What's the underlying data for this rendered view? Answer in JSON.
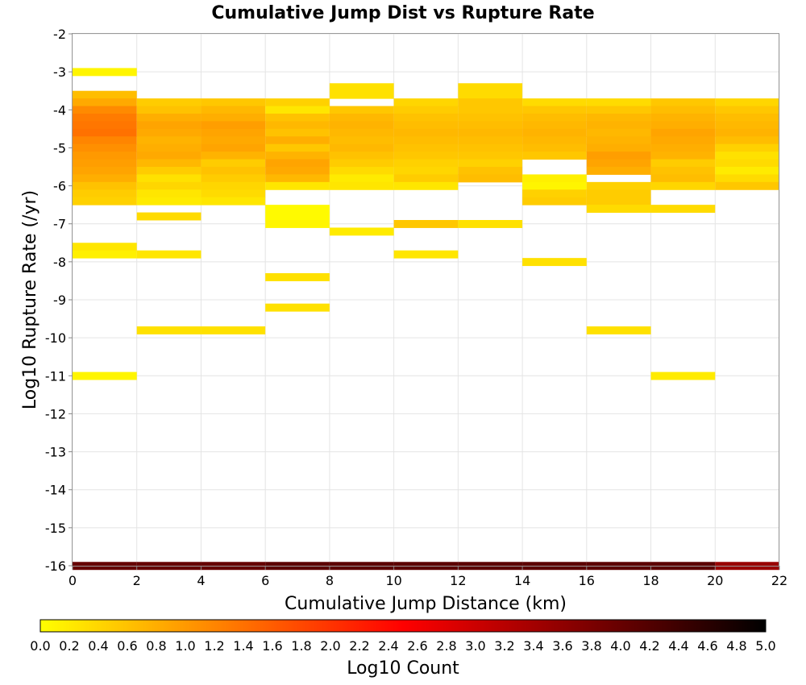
{
  "chart_data": {
    "type": "heatmap",
    "title": "Cumulative Jump Dist vs Rupture Rate",
    "xlabel": "Cumulative Jump Distance (km)",
    "ylabel": "Log10 Rupture Rate (/yr)",
    "xlim": [
      0,
      22
    ],
    "ylim": [
      -16,
      -2
    ],
    "x_bin_width": 2,
    "y_bin_height": 0.2,
    "x_ticks": [
      "0",
      "2",
      "4",
      "6",
      "8",
      "10",
      "12",
      "14",
      "16",
      "18",
      "20",
      "22"
    ],
    "y_ticks": [
      "-2",
      "-3",
      "-4",
      "-5",
      "-6",
      "-7",
      "-8",
      "-9",
      "-10",
      "-11",
      "-12",
      "-13",
      "-14",
      "-15",
      "-16"
    ],
    "grid": true,
    "colorbar": {
      "label": "Log10 Count",
      "range": [
        0,
        5
      ],
      "colormap": [
        "#ffff00",
        "#ff8000",
        "#ff0000",
        "#800000",
        "#000000"
      ],
      "ticks": [
        "0.0",
        "0.2",
        "0.4",
        "0.6",
        "0.8",
        "1.0",
        "1.2",
        "1.4",
        "1.6",
        "1.8",
        "2.0",
        "2.2",
        "2.4",
        "2.6",
        "2.8",
        "3.0",
        "3.2",
        "3.4",
        "3.6",
        "3.8",
        "4.0",
        "4.2",
        "4.4",
        "4.6",
        "4.8",
        "5.0"
      ]
    },
    "columns": [
      {
        "x": [
          0,
          2
        ],
        "cells": [
          [
            -3.0,
            0.1
          ],
          [
            -3.6,
            0.65
          ],
          [
            -3.8,
            0.85
          ],
          [
            -4.0,
            1.15
          ],
          [
            -4.2,
            1.3
          ],
          [
            -4.4,
            1.35
          ],
          [
            -4.6,
            1.4
          ],
          [
            -4.8,
            1.2
          ],
          [
            -5.0,
            1.1
          ],
          [
            -5.2,
            1.0
          ],
          [
            -5.4,
            0.95
          ],
          [
            -5.6,
            0.9
          ],
          [
            -5.8,
            0.8
          ],
          [
            -6.0,
            0.6
          ],
          [
            -6.2,
            0.5
          ],
          [
            -6.4,
            0.45
          ],
          [
            -7.6,
            0.25
          ],
          [
            -7.8,
            0.15
          ],
          [
            -11.0,
            0.1
          ],
          [
            -16.0,
            4.0
          ]
        ]
      },
      {
        "x": [
          2,
          4
        ],
        "cells": [
          [
            -3.8,
            0.5
          ],
          [
            -4.0,
            0.6
          ],
          [
            -4.2,
            0.8
          ],
          [
            -4.4,
            0.9
          ],
          [
            -4.6,
            0.85
          ],
          [
            -4.8,
            0.75
          ],
          [
            -5.0,
            0.8
          ],
          [
            -5.2,
            0.85
          ],
          [
            -5.4,
            0.7
          ],
          [
            -5.6,
            0.5
          ],
          [
            -5.8,
            0.3
          ],
          [
            -6.0,
            0.4
          ],
          [
            -6.2,
            0.25
          ],
          [
            -6.4,
            0.2
          ],
          [
            -6.8,
            0.35
          ],
          [
            -7.8,
            0.25
          ],
          [
            -9.8,
            0.3
          ],
          [
            -16.0,
            4.0
          ]
        ]
      },
      {
        "x": [
          4,
          6
        ],
        "cells": [
          [
            -3.8,
            0.55
          ],
          [
            -4.0,
            0.7
          ],
          [
            -4.2,
            0.8
          ],
          [
            -4.4,
            0.95
          ],
          [
            -4.6,
            0.9
          ],
          [
            -4.8,
            0.85
          ],
          [
            -5.0,
            0.9
          ],
          [
            -5.2,
            0.75
          ],
          [
            -5.4,
            0.5
          ],
          [
            -5.6,
            0.6
          ],
          [
            -5.8,
            0.5
          ],
          [
            -6.0,
            0.4
          ],
          [
            -6.2,
            0.35
          ],
          [
            -6.4,
            0.25
          ],
          [
            -9.8,
            0.3
          ],
          [
            -16.0,
            4.0
          ]
        ]
      },
      {
        "x": [
          6,
          8
        ],
        "cells": [
          [
            -3.8,
            0.45
          ],
          [
            -4.0,
            0.25
          ],
          [
            -4.2,
            0.6
          ],
          [
            -4.4,
            0.7
          ],
          [
            -4.6,
            0.6
          ],
          [
            -4.8,
            0.8
          ],
          [
            -5.0,
            0.55
          ],
          [
            -5.2,
            0.75
          ],
          [
            -5.4,
            0.9
          ],
          [
            -5.6,
            0.85
          ],
          [
            -5.8,
            0.7
          ],
          [
            -6.0,
            0.25
          ],
          [
            -6.6,
            0.05
          ],
          [
            -6.8,
            0.05
          ],
          [
            -7.0,
            0.1
          ],
          [
            -8.4,
            0.3
          ],
          [
            -9.2,
            0.3
          ],
          [
            -16.0,
            4.1
          ]
        ]
      },
      {
        "x": [
          8,
          10
        ],
        "cells": [
          [
            -3.4,
            0.3
          ],
          [
            -3.6,
            0.3
          ],
          [
            -4.0,
            0.55
          ],
          [
            -4.2,
            0.7
          ],
          [
            -4.4,
            0.75
          ],
          [
            -4.6,
            0.7
          ],
          [
            -4.8,
            0.65
          ],
          [
            -5.0,
            0.7
          ],
          [
            -5.2,
            0.6
          ],
          [
            -5.4,
            0.5
          ],
          [
            -5.6,
            0.35
          ],
          [
            -5.8,
            0.2
          ],
          [
            -6.0,
            0.25
          ],
          [
            -7.2,
            0.2
          ],
          [
            -16.0,
            4.1
          ]
        ]
      },
      {
        "x": [
          10,
          12
        ],
        "cells": [
          [
            -3.8,
            0.4
          ],
          [
            -4.0,
            0.5
          ],
          [
            -4.2,
            0.6
          ],
          [
            -4.4,
            0.65
          ],
          [
            -4.6,
            0.7
          ],
          [
            -4.8,
            0.65
          ],
          [
            -5.0,
            0.6
          ],
          [
            -5.2,
            0.55
          ],
          [
            -5.4,
            0.45
          ],
          [
            -5.6,
            0.4
          ],
          [
            -5.8,
            0.5
          ],
          [
            -6.0,
            0.25
          ],
          [
            -7.0,
            0.55
          ],
          [
            -7.8,
            0.25
          ],
          [
            -16.0,
            4.1
          ]
        ]
      },
      {
        "x": [
          12,
          14
        ],
        "cells": [
          [
            -3.4,
            0.35
          ],
          [
            -3.6,
            0.35
          ],
          [
            -3.8,
            0.55
          ],
          [
            -4.0,
            0.55
          ],
          [
            -4.2,
            0.6
          ],
          [
            -4.4,
            0.65
          ],
          [
            -4.6,
            0.7
          ],
          [
            -4.8,
            0.65
          ],
          [
            -5.0,
            0.6
          ],
          [
            -5.2,
            0.55
          ],
          [
            -5.4,
            0.45
          ],
          [
            -5.6,
            0.6
          ],
          [
            -5.8,
            0.65
          ],
          [
            -7.0,
            0.3
          ],
          [
            -16.0,
            4.1
          ]
        ]
      },
      {
        "x": [
          14,
          16
        ],
        "cells": [
          [
            -3.8,
            0.35
          ],
          [
            -4.0,
            0.55
          ],
          [
            -4.2,
            0.65
          ],
          [
            -4.4,
            0.7
          ],
          [
            -4.6,
            0.75
          ],
          [
            -4.8,
            0.7
          ],
          [
            -5.0,
            0.65
          ],
          [
            -5.2,
            0.55
          ],
          [
            -5.8,
            0.15
          ],
          [
            -6.0,
            0.1
          ],
          [
            -6.2,
            0.45
          ],
          [
            -6.4,
            0.5
          ],
          [
            -8.0,
            0.3
          ],
          [
            -16.0,
            4.1
          ]
        ]
      },
      {
        "x": [
          16,
          18
        ],
        "cells": [
          [
            -3.8,
            0.35
          ],
          [
            -4.0,
            0.55
          ],
          [
            -4.2,
            0.7
          ],
          [
            -4.4,
            0.75
          ],
          [
            -4.6,
            0.7
          ],
          [
            -4.8,
            0.75
          ],
          [
            -5.0,
            0.8
          ],
          [
            -5.2,
            0.95
          ],
          [
            -5.4,
            0.9
          ],
          [
            -5.6,
            0.8
          ],
          [
            -6.0,
            0.45
          ],
          [
            -6.2,
            0.5
          ],
          [
            -6.4,
            0.5
          ],
          [
            -6.6,
            0.35
          ],
          [
            -9.8,
            0.3
          ],
          [
            -16.0,
            4.1
          ]
        ]
      },
      {
        "x": [
          18,
          20
        ],
        "cells": [
          [
            -3.8,
            0.55
          ],
          [
            -4.0,
            0.65
          ],
          [
            -4.2,
            0.75
          ],
          [
            -4.4,
            0.8
          ],
          [
            -4.6,
            0.9
          ],
          [
            -4.8,
            0.85
          ],
          [
            -5.0,
            0.8
          ],
          [
            -5.2,
            0.75
          ],
          [
            -5.4,
            0.5
          ],
          [
            -5.6,
            0.6
          ],
          [
            -5.8,
            0.65
          ],
          [
            -6.0,
            0.4
          ],
          [
            -6.6,
            0.35
          ],
          [
            -11.0,
            0.2
          ],
          [
            -16.0,
            4.1
          ]
        ]
      },
      {
        "x": [
          20,
          22
        ],
        "cells": [
          [
            -3.8,
            0.4
          ],
          [
            -4.0,
            0.55
          ],
          [
            -4.2,
            0.65
          ],
          [
            -4.4,
            0.7
          ],
          [
            -4.6,
            0.75
          ],
          [
            -4.8,
            0.65
          ],
          [
            -5.0,
            0.45
          ],
          [
            -5.2,
            0.3
          ],
          [
            -5.4,
            0.35
          ],
          [
            -5.6,
            0.2
          ],
          [
            -5.8,
            0.35
          ],
          [
            -6.0,
            0.55
          ],
          [
            -16.0,
            3.5
          ]
        ]
      }
    ]
  }
}
